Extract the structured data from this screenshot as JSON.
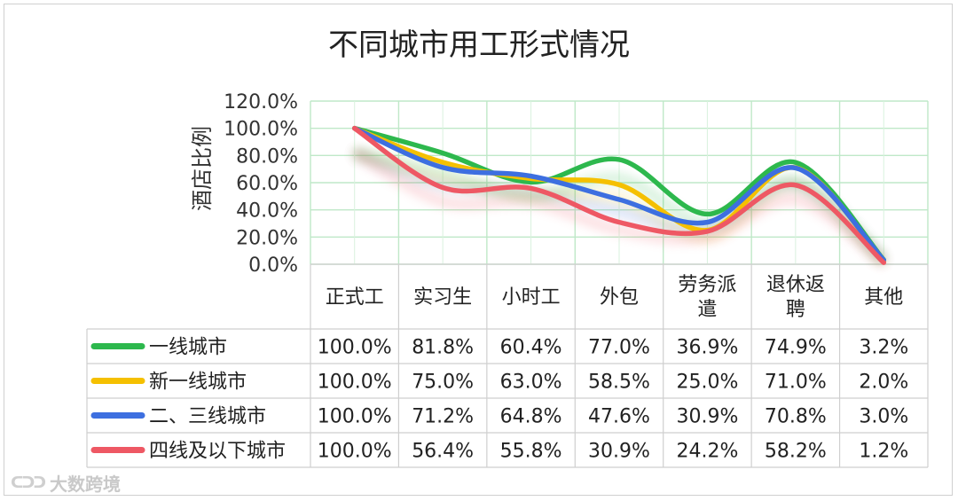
{
  "chart_data": {
    "type": "line",
    "title": "不同城市用工形式情况",
    "ylabel": "酒店比例",
    "ylim": [
      0,
      120
    ],
    "yticks": [
      "0.0%",
      "20.0%",
      "40.0%",
      "60.0%",
      "80.0%",
      "100.0%",
      "120.0%"
    ],
    "categories": [
      "正式工",
      "实习生",
      "小时工",
      "外包",
      "劳务派\n遣",
      "退休返\n聘",
      "其他"
    ],
    "grid": true,
    "legend": "data-table",
    "series": [
      {
        "name": "一线城市",
        "color": "#2db84d",
        "values": [
          100.0,
          81.8,
          60.4,
          77.0,
          36.9,
          74.9,
          3.2
        ],
        "labels": [
          "100.0%",
          "81.8%",
          "60.4%",
          "77.0%",
          "36.9%",
          "74.9%",
          "3.2%"
        ]
      },
      {
        "name": "新一线城市",
        "color": "#f5c000",
        "values": [
          100.0,
          75.0,
          63.0,
          58.5,
          25.0,
          71.0,
          2.0
        ],
        "labels": [
          "100.0%",
          "75.0%",
          "63.0%",
          "58.5%",
          "25.0%",
          "71.0%",
          "2.0%"
        ]
      },
      {
        "name": "二、三线城市",
        "color": "#3d6fe0",
        "values": [
          100.0,
          71.2,
          64.8,
          47.6,
          30.9,
          70.8,
          3.0
        ],
        "labels": [
          "100.0%",
          "71.2%",
          "64.8%",
          "47.6%",
          "30.9%",
          "70.8%",
          "3.0%"
        ]
      },
      {
        "name": "四线及以下城市",
        "color": "#ee5864",
        "values": [
          100.0,
          56.4,
          55.8,
          30.9,
          24.2,
          58.2,
          1.2
        ],
        "labels": [
          "100.0%",
          "56.4%",
          "55.8%",
          "30.9%",
          "24.2%",
          "58.2%",
          "1.2%"
        ]
      }
    ]
  },
  "watermark": {
    "logo": "ᑕᑐᑐ",
    "text": "大数跨境"
  }
}
